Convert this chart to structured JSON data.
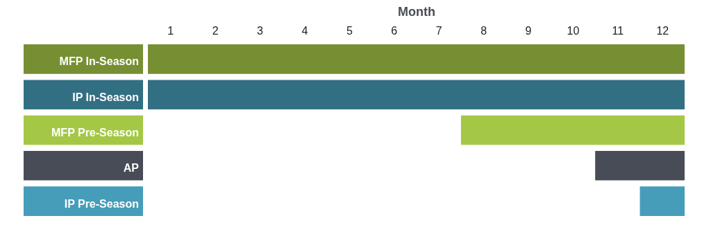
{
  "chart_data": {
    "type": "bar",
    "orientation": "horizontal",
    "xlabel": "Month",
    "categories": [
      "MFP In-Season",
      "IP In-Season",
      "MFP Pre-Season",
      "AP",
      "IP Pre-Season"
    ],
    "base": [
      0.5,
      0.5,
      7.5,
      10.5,
      11.5
    ],
    "values": [
      12,
      12,
      5,
      2,
      1
    ],
    "colors": [
      "#778f33",
      "#336f83",
      "#a4c846",
      "#484c56",
      "#469dba"
    ],
    "xlim": [
      0.5,
      12.5
    ],
    "xticks": [
      1,
      2,
      3,
      4,
      5,
      6,
      7,
      8,
      9,
      10,
      11,
      12
    ],
    "grid": false
  }
}
